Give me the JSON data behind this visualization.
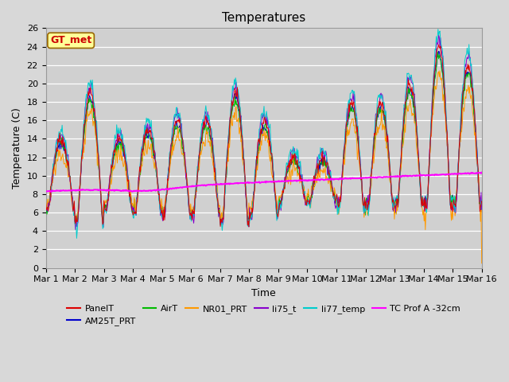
{
  "title": "Temperatures",
  "xlabel": "Time",
  "ylabel": "Temperature (C)",
  "ylim": [
    0,
    26
  ],
  "xlim_days": 15,
  "annotation_text": "GT_met",
  "annotation_color": "#cc0000",
  "annotation_bg": "#ffff99",
  "annotation_border": "#996600",
  "series_colors": {
    "PanelT": "#dd0000",
    "AM25T_PRT": "#0000cc",
    "AirT": "#00bb00",
    "NR01_PRT": "#ff9900",
    "li75_t": "#8800cc",
    "li77_temp": "#00cccc",
    "TC Prof A -32cm": "#ff00ff"
  },
  "legend_labels": [
    "PanelT",
    "AM25T_PRT",
    "AirT",
    "NR01_PRT",
    "li75_t",
    "li77_temp",
    "TC Prof A -32cm"
  ],
  "xtick_labels": [
    "Mar 1",
    "Mar 2",
    "Mar 3",
    "Mar 4",
    "Mar 5",
    "Mar 6",
    "Mar 7",
    "Mar 8",
    "Mar 9",
    "Mar 10",
    "Mar 11",
    "Mar 12",
    "Mar 13",
    "Mar 14",
    "Mar 15",
    "Mar 16"
  ],
  "ytick_vals": [
    0,
    2,
    4,
    6,
    8,
    10,
    12,
    14,
    16,
    18,
    20,
    22,
    24,
    26
  ],
  "fig_bg": "#d8d8d8",
  "plot_bg": "#d0d0d0",
  "grid_color": "#ffffff",
  "figsize": [
    6.4,
    4.8
  ],
  "dpi": 100
}
